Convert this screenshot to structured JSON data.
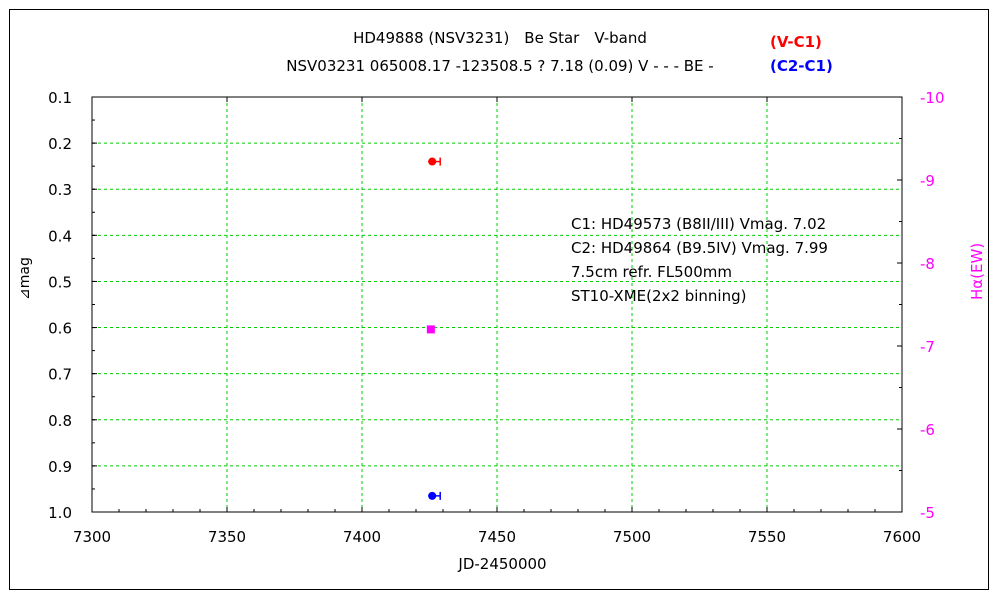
{
  "chart_data": {
    "type": "scatter",
    "title": "HD49888 (NSV3231)　Be Star　V-band",
    "subtitle": "NSV03231 065008.17 -123508.5 ? 7.18 (0.09) V - - - BE -",
    "xlabel": "JD-2450000",
    "ylabel_left": "⊿mag",
    "ylabel_right": "Hα(EW)",
    "xlim": [
      7300,
      7600
    ],
    "ylim_left": [
      0.1,
      1.0
    ],
    "ylim_left_inverted": true,
    "ylim_right": [
      -10,
      -5
    ],
    "ylim_right_inverted": true,
    "x_ticks": [
      "7300",
      "7350",
      "7400",
      "7450",
      "7500",
      "7550",
      "7600"
    ],
    "y_ticks_left": [
      "0.1",
      "0.2",
      "0.3",
      "0.4",
      "0.5",
      "0.6",
      "0.7",
      "0.8",
      "0.9",
      "1.0"
    ],
    "y_ticks_right": [
      "-10",
      "-9",
      "-8",
      "-7",
      "-6",
      "-5"
    ],
    "grid": true,
    "series": [
      {
        "name": "(V-C1)",
        "axis": "left",
        "color": "#ff0000",
        "marker": "circle-errorbar",
        "points": [
          {
            "x": 7426,
            "y": 0.24
          }
        ]
      },
      {
        "name": "(C2-C1)",
        "axis": "left",
        "color": "#0000ff",
        "marker": "circle-errorbar",
        "points": [
          {
            "x": 7426,
            "y": 0.965
          }
        ]
      },
      {
        "name": "Hα(EW)",
        "axis": "right",
        "color": "#ff00ff",
        "marker": "square",
        "points": [
          {
            "x": 7425.5,
            "y": -7.2
          }
        ]
      }
    ],
    "annotations": [
      "C1: HD49573 (B8II/III) Vmag. 7.02",
      "C2: HD49864 (B9.5IV) Vmag. 7.99",
      "7.5cm refr. FL500mm",
      "ST10-XME(2x2 binning)"
    ]
  }
}
